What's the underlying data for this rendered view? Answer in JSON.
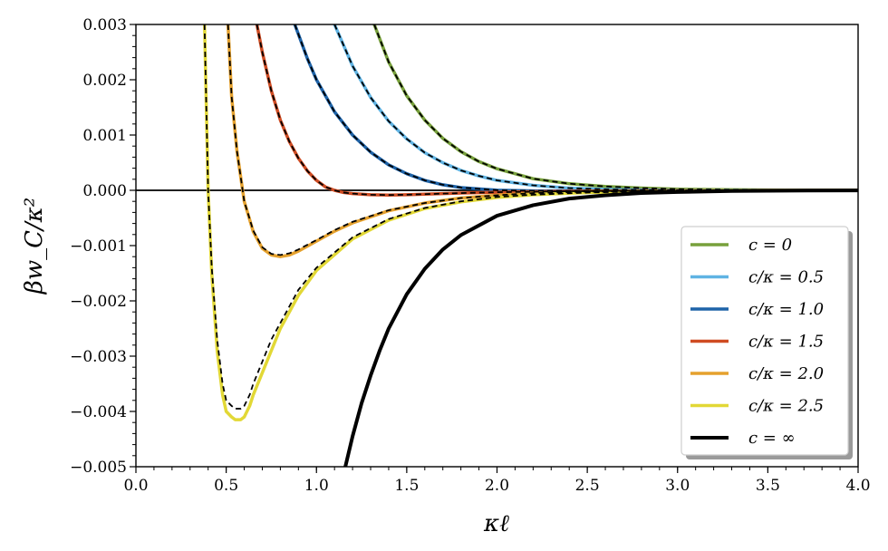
{
  "chart_data": {
    "type": "line",
    "xlabel": "κℓ",
    "ylabel": "βw_C/κ²",
    "xlim": [
      0.0,
      4.0
    ],
    "ylim": [
      -0.005,
      0.003
    ],
    "x_ticks": [
      {
        "value": 0.0,
        "label": "0.0"
      },
      {
        "value": 0.5,
        "label": "0.5"
      },
      {
        "value": 1.0,
        "label": "1.0"
      },
      {
        "value": 1.5,
        "label": "1.5"
      },
      {
        "value": 2.0,
        "label": "2.0"
      },
      {
        "value": 2.5,
        "label": "2.5"
      },
      {
        "value": 3.0,
        "label": "3.0"
      },
      {
        "value": 3.5,
        "label": "3.5"
      },
      {
        "value": 4.0,
        "label": "4.0"
      }
    ],
    "y_ticks": [
      {
        "value": 0.003,
        "label": "0.003"
      },
      {
        "value": 0.002,
        "label": "0.002"
      },
      {
        "value": 0.001,
        "label": "0.001"
      },
      {
        "value": 0.0,
        "label": "0.000"
      },
      {
        "value": -0.001,
        "label": "−0.001"
      },
      {
        "value": -0.002,
        "label": "−0.002"
      },
      {
        "value": -0.003,
        "label": "−0.003"
      },
      {
        "value": -0.004,
        "label": "−0.004"
      },
      {
        "value": -0.005,
        "label": "−0.005"
      }
    ],
    "grid": false,
    "legend_position": "lower-right",
    "zero_line": true,
    "series": [
      {
        "name": "c = 0",
        "color": "#77a03b",
        "width": 3.5,
        "x": [
          1.32,
          1.4,
          1.5,
          1.6,
          1.7,
          1.8,
          1.9,
          2.0,
          2.2,
          2.4,
          2.6,
          2.8,
          3.0,
          3.3,
          3.6,
          4.0
        ],
        "y": [
          0.003,
          0.00232,
          0.00171,
          0.00127,
          0.00094,
          0.0007,
          0.00052,
          0.00039,
          0.00021,
          0.00012,
          7e-05,
          4e-05,
          2e-05,
          1e-05,
          4e-06,
          1e-06
        ]
      },
      {
        "name": "c/κ = 0.5",
        "color": "#5fb3e3",
        "width": 3.5,
        "x": [
          1.1,
          1.2,
          1.3,
          1.4,
          1.5,
          1.6,
          1.7,
          1.8,
          1.9,
          2.0,
          2.2,
          2.4,
          2.6,
          2.8,
          3.0,
          3.3,
          3.6,
          4.0
        ],
        "y": [
          0.003,
          0.00225,
          0.00168,
          0.00125,
          0.00093,
          0.00068,
          0.0005,
          0.00036,
          0.00026,
          0.00018,
          9e-05,
          4e-05,
          1.7e-05,
          6e-06,
          1e-06,
          -2e-06,
          -2e-06,
          -1e-06
        ]
      },
      {
        "name": "c/κ = 1.0",
        "color": "#1e63a8",
        "width": 3.5,
        "x": [
          0.88,
          0.95,
          1.0,
          1.1,
          1.2,
          1.3,
          1.4,
          1.5,
          1.6,
          1.7,
          1.8,
          2.0,
          2.2,
          2.4,
          2.6,
          2.8,
          3.0,
          3.3,
          3.6,
          4.0
        ],
        "y": [
          0.003,
          0.00238,
          0.002,
          0.00142,
          0.001,
          0.00069,
          0.00046,
          0.0003,
          0.00018,
          0.0001,
          5e-05,
          2e-06,
          -1e-05,
          -1.2e-05,
          -1e-05,
          -8e-06,
          -6e-06,
          -4e-06,
          -2e-06,
          -1e-06
        ]
      },
      {
        "name": "c/κ = 1.5",
        "color": "#cf4b22",
        "width": 3.5,
        "x": [
          0.67,
          0.7,
          0.75,
          0.8,
          0.85,
          0.9,
          0.95,
          1.0,
          1.05,
          1.1,
          1.15,
          1.2,
          1.3,
          1.4,
          1.5,
          1.6,
          1.8,
          2.0,
          2.2,
          2.4,
          2.7,
          3.0,
          3.5,
          4.0
        ],
        "y": [
          0.003,
          0.0025,
          0.0018,
          0.00127,
          0.00088,
          0.00058,
          0.00035,
          0.00018,
          6e-05,
          0.0,
          -4e-05,
          -6e-05,
          -8e-05,
          -8.5e-05,
          -8e-05,
          -7e-05,
          -5e-05,
          -3.5e-05,
          -2.5e-05,
          -1.7e-05,
          -1e-05,
          -6e-06,
          -3e-06,
          -1e-06
        ]
      },
      {
        "name": "c/κ = 2.0",
        "color": "#e5a12d",
        "width": 3.5,
        "x": [
          0.51,
          0.53,
          0.56,
          0.6,
          0.65,
          0.7,
          0.75,
          0.8,
          0.85,
          0.9,
          1.0,
          1.1,
          1.2,
          1.4,
          1.6,
          1.8,
          2.0,
          2.2,
          2.5,
          2.8,
          3.0,
          3.5,
          4.0
        ],
        "y": [
          0.003,
          0.0017,
          0.0007,
          -0.0002,
          -0.00075,
          -0.00105,
          -0.00117,
          -0.0012,
          -0.00117,
          -0.0011,
          -0.00092,
          -0.00074,
          -0.00059,
          -0.00037,
          -0.00023,
          -0.00014,
          -9e-05,
          -5e-05,
          -2.5e-05,
          -1.2e-05,
          -8e-06,
          -3e-06,
          -1e-06
        ]
      },
      {
        "name": "c/κ = 2.5",
        "color": "#e2d836",
        "width": 3.5,
        "x": [
          0.38,
          0.39,
          0.4,
          0.42,
          0.45,
          0.48,
          0.5,
          0.53,
          0.55,
          0.58,
          0.6,
          0.63,
          0.65,
          0.7,
          0.75,
          0.8,
          0.9,
          1.0,
          1.2,
          1.4,
          1.6,
          1.8,
          2.0,
          2.2,
          2.5,
          2.8,
          3.0,
          3.5,
          4.0
        ],
        "y": [
          0.003,
          0.0015,
          0.0,
          -0.0015,
          -0.0029,
          -0.0037,
          -0.004,
          -0.0041,
          -0.00415,
          -0.00415,
          -0.0041,
          -0.0039,
          -0.0037,
          -0.0033,
          -0.0029,
          -0.0025,
          -0.0019,
          -0.00145,
          -0.00088,
          -0.00054,
          -0.00033,
          -0.00021,
          -0.00013,
          -8e-05,
          -4e-05,
          -2e-05,
          -1.2e-05,
          -4e-06,
          -1e-06
        ]
      },
      {
        "name": "c = ∞",
        "color": "#000000",
        "width": 4,
        "x": [
          1.16,
          1.2,
          1.25,
          1.3,
          1.35,
          1.4,
          1.5,
          1.6,
          1.7,
          1.8,
          2.0,
          2.2,
          2.4,
          2.6,
          2.8,
          3.0,
          3.3,
          3.6,
          4.0
        ],
        "y": [
          -0.005,
          -0.00445,
          -0.00385,
          -0.00335,
          -0.0029,
          -0.0025,
          -0.00188,
          -0.00142,
          -0.00107,
          -0.00081,
          -0.00046,
          -0.00027,
          -0.00015,
          -9e-05,
          -5e-05,
          -3e-05,
          -1.3e-05,
          -6e-06,
          -2e-06
        ]
      }
    ],
    "dashed_fits": {
      "color": "#000000",
      "style": "dashed",
      "curves": [
        {
          "x": [
            1.32,
            1.4,
            1.5,
            1.6,
            1.7,
            1.8,
            1.9,
            2.0,
            2.2,
            2.4,
            2.6,
            2.8,
            3.0,
            3.3,
            3.6,
            4.0
          ],
          "y": [
            0.003,
            0.00232,
            0.00171,
            0.00127,
            0.00094,
            0.0007,
            0.00052,
            0.00039,
            0.00021,
            0.00012,
            7e-05,
            4e-05,
            2e-05,
            1e-05,
            4e-06,
            1e-06
          ]
        },
        {
          "x": [
            1.1,
            1.2,
            1.3,
            1.4,
            1.5,
            1.6,
            1.7,
            1.8,
            1.9,
            2.0,
            2.2,
            2.4,
            2.6,
            2.8,
            3.0,
            3.3,
            3.6,
            4.0
          ],
          "y": [
            0.003,
            0.00225,
            0.00168,
            0.00125,
            0.00093,
            0.00068,
            0.0005,
            0.00036,
            0.00026,
            0.00018,
            9e-05,
            4e-05,
            1.7e-05,
            6e-06,
            1e-06,
            -2e-06,
            -2e-06,
            -1e-06
          ]
        },
        {
          "x": [
            0.88,
            0.95,
            1.0,
            1.1,
            1.2,
            1.3,
            1.4,
            1.5,
            1.6,
            1.7,
            1.8,
            2.0,
            2.2,
            2.4,
            2.6,
            2.8,
            3.0,
            3.3,
            3.6,
            4.0
          ],
          "y": [
            0.003,
            0.00238,
            0.002,
            0.00142,
            0.001,
            0.00069,
            0.00046,
            0.0003,
            0.00018,
            0.0001,
            5e-05,
            2e-06,
            -1e-05,
            -1.2e-05,
            -1e-05,
            -8e-06,
            -6e-06,
            -4e-06,
            -2e-06,
            -1e-06
          ]
        },
        {
          "x": [
            0.67,
            0.7,
            0.75,
            0.8,
            0.85,
            0.9,
            0.95,
            1.0,
            1.05,
            1.1,
            1.15,
            1.2,
            1.3,
            1.4,
            1.5,
            1.6,
            1.8,
            2.0,
            2.2,
            2.4,
            2.7,
            3.0,
            3.5,
            4.0
          ],
          "y": [
            0.003,
            0.0025,
            0.0018,
            0.00127,
            0.00088,
            0.00058,
            0.00035,
            0.00018,
            6e-05,
            0.0,
            -4e-05,
            -6e-05,
            -8e-05,
            -8.5e-05,
            -8e-05,
            -7e-05,
            -5e-05,
            -3.5e-05,
            -2.5e-05,
            -1.7e-05,
            -1e-05,
            -6e-06,
            -3e-06,
            -1e-06
          ]
        },
        {
          "x": [
            0.51,
            0.53,
            0.56,
            0.6,
            0.65,
            0.7,
            0.75,
            0.8,
            0.85,
            0.9,
            1.0,
            1.1,
            1.2,
            1.4,
            1.6,
            1.8,
            2.0,
            2.2,
            2.5,
            2.8,
            3.0,
            3.5,
            4.0
          ],
          "y": [
            0.003,
            0.0017,
            0.0007,
            -0.0002,
            -0.00073,
            -0.00103,
            -0.00115,
            -0.00117,
            -0.00114,
            -0.00107,
            -0.0009,
            -0.00072,
            -0.00057,
            -0.00036,
            -0.00023,
            -0.00014,
            -9e-05,
            -5e-05,
            -2.5e-05,
            -1.2e-05,
            -8e-06,
            -3e-06,
            -1e-06
          ]
        },
        {
          "x": [
            0.38,
            0.39,
            0.4,
            0.42,
            0.45,
            0.48,
            0.5,
            0.53,
            0.55,
            0.58,
            0.6,
            0.63,
            0.65,
            0.7,
            0.75,
            0.8,
            0.9,
            1.0,
            1.2,
            1.4,
            1.6,
            1.8,
            2.0,
            2.2,
            2.5,
            2.8,
            3.0,
            3.5,
            4.0
          ],
          "y": [
            0.003,
            0.0015,
            0.0,
            -0.0014,
            -0.0027,
            -0.0035,
            -0.0038,
            -0.0039,
            -0.00395,
            -0.00395,
            -0.0039,
            -0.0037,
            -0.0035,
            -0.0031,
            -0.0027,
            -0.0024,
            -0.0018,
            -0.0014,
            -0.00085,
            -0.00052,
            -0.00032,
            -0.0002,
            -0.00012,
            -8e-05,
            -4e-05,
            -2e-05,
            -1.2e-05,
            -4e-06,
            -1e-06
          ]
        }
      ]
    }
  }
}
